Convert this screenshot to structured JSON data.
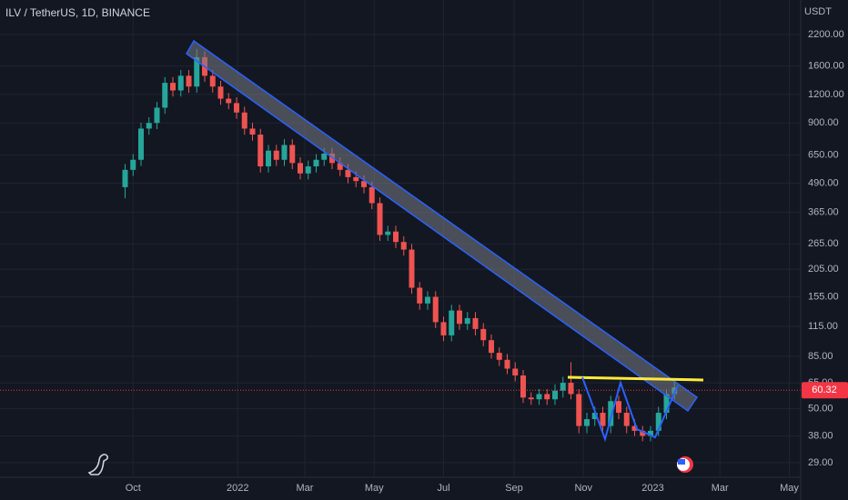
{
  "chart_data": {
    "type": "candlestick",
    "title": "ILV / TetherUS, 1D, BINANCE",
    "y_unit": "USDT",
    "log_scale": true,
    "grid": true,
    "up_color": "#26a69a",
    "down_color": "#ef5350",
    "last_price": 60.32,
    "last_price_color": "#f23645",
    "x": [
      -7,
      0,
      7,
      14,
      21,
      28,
      35,
      42,
      49,
      56,
      63,
      70,
      77,
      84,
      91,
      98,
      105,
      112,
      119,
      126,
      133,
      140,
      147,
      154,
      161,
      168,
      175,
      182,
      189,
      196,
      203,
      210,
      217,
      224,
      231,
      238,
      245,
      252,
      259,
      266,
      273,
      280,
      287,
      294,
      301,
      308,
      315,
      322,
      329,
      336,
      343,
      350,
      357,
      364,
      371,
      378,
      385,
      392,
      399,
      406,
      413,
      420,
      427,
      434,
      441,
      448,
      455,
      462,
      469,
      476
    ],
    "open": [
      470,
      560,
      620,
      850,
      900,
      1050,
      1350,
      1250,
      1450,
      1300,
      1750,
      1450,
      1300,
      1150,
      1100,
      1000,
      850,
      800,
      580,
      680,
      620,
      720,
      600,
      540,
      580,
      620,
      660,
      600,
      560,
      520,
      500,
      470,
      400,
      290,
      300,
      270,
      250,
      170,
      145,
      155,
      120,
      105,
      135,
      118,
      125,
      112,
      100,
      88,
      82,
      75,
      70,
      56,
      55,
      58,
      55,
      60,
      65,
      58,
      42,
      45,
      48,
      42,
      54,
      48,
      42,
      40,
      38,
      40,
      48,
      58
    ],
    "high": [
      594,
      657,
      901,
      954,
      1113,
      1431,
      1431,
      1537,
      1537,
      1900,
      1855,
      1537,
      1378,
      1219,
      1166,
      1060,
      901,
      848,
      721,
      721,
      763,
      763,
      636,
      615,
      657,
      700,
      700,
      636,
      594,
      551,
      530,
      498,
      424,
      318,
      318,
      286,
      265,
      180,
      164,
      164,
      127,
      143,
      143,
      133,
      133,
      119,
      106,
      93,
      87,
      80,
      74,
      59,
      61,
      61,
      64,
      69,
      80,
      61,
      48,
      51,
      51,
      57,
      57,
      51,
      45,
      42,
      42,
      51,
      61,
      66
    ],
    "low": [
      420,
      526,
      583,
      799,
      846,
      987,
      1175,
      1175,
      1222,
      1222,
      1363,
      1222,
      1081,
      1034,
      940,
      799,
      752,
      545,
      545,
      583,
      583,
      564,
      508,
      508,
      545,
      583,
      564,
      526,
      489,
      470,
      442,
      376,
      273,
      273,
      254,
      235,
      160,
      136,
      136,
      113,
      99,
      99,
      111,
      111,
      105,
      94,
      83,
      77,
      71,
      66,
      53,
      52,
      52,
      52,
      52,
      56,
      55,
      39,
      39,
      42,
      39,
      39,
      45,
      39,
      38,
      36,
      36,
      38,
      45,
      55
    ],
    "close": [
      560,
      620,
      850,
      900,
      1050,
      1350,
      1250,
      1450,
      1300,
      1750,
      1450,
      1300,
      1150,
      1100,
      1000,
      850,
      800,
      580,
      680,
      620,
      720,
      600,
      540,
      580,
      620,
      660,
      600,
      560,
      520,
      500,
      470,
      400,
      290,
      300,
      270,
      250,
      170,
      145,
      155,
      120,
      105,
      135,
      118,
      125,
      112,
      100,
      88,
      82,
      75,
      70,
      56,
      55,
      58,
      55,
      60,
      65,
      58,
      42,
      45,
      48,
      42,
      54,
      48,
      42,
      40,
      38,
      40,
      48,
      58,
      62
    ],
    "xlim": [
      -117,
      587
    ],
    "ylim": [
      25,
      3120
    ],
    "xticks": [
      {
        "value": 0,
        "label": "Oct"
      },
      {
        "value": 92,
        "label": "2022"
      },
      {
        "value": 151,
        "label": "Mar"
      },
      {
        "value": 212,
        "label": "May"
      },
      {
        "value": 273,
        "label": "Jul"
      },
      {
        "value": 335,
        "label": "Sep"
      },
      {
        "value": 396,
        "label": "Nov"
      },
      {
        "value": 457,
        "label": "2023"
      },
      {
        "value": 516,
        "label": "Mar"
      },
      {
        "value": 577,
        "label": "May"
      }
    ],
    "yticks": [
      {
        "value": 29,
        "label": "29.00"
      },
      {
        "value": 38,
        "label": "38.00"
      },
      {
        "value": 50,
        "label": "50.00"
      },
      {
        "value": 65,
        "label": "65.00"
      },
      {
        "value": 85,
        "label": "85.00"
      },
      {
        "value": 115,
        "label": "115.00"
      },
      {
        "value": 155,
        "label": "155.00"
      },
      {
        "value": 205,
        "label": "205.00"
      },
      {
        "value": 265,
        "label": "265.00"
      },
      {
        "value": 365,
        "label": "365.00"
      },
      {
        "value": 490,
        "label": "490.00"
      },
      {
        "value": 650,
        "label": "650.00"
      },
      {
        "value": 900,
        "label": "900.00"
      },
      {
        "value": 1200,
        "label": "1200.00"
      },
      {
        "value": 1600,
        "label": "1600.00"
      },
      {
        "value": 2200,
        "label": "2200.00"
      }
    ]
  }
}
